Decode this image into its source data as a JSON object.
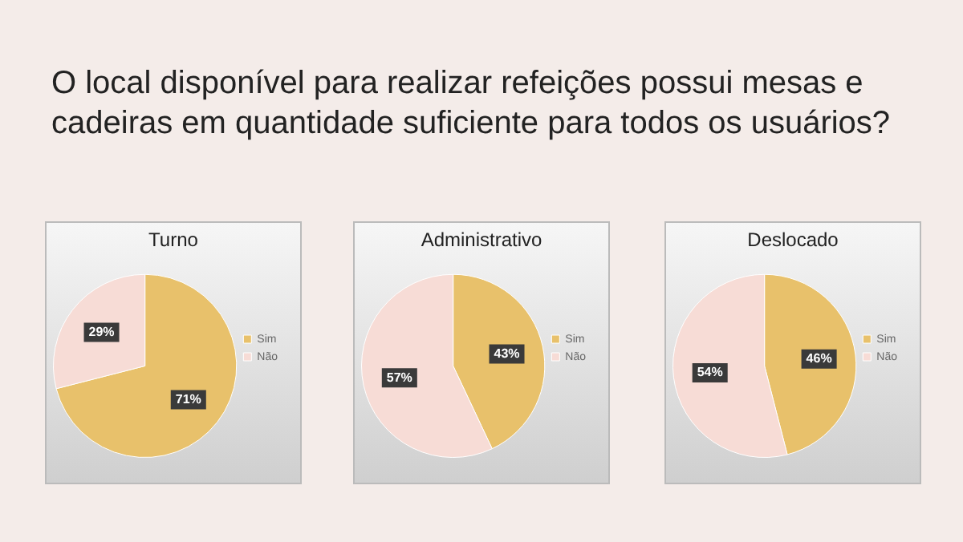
{
  "chart_data": [
    {
      "type": "other",
      "title": "O local disponível para realizar refeições possui mesas e cadeiras em quantidade suficiente para todos os usuários?"
    },
    {
      "type": "pie",
      "title": "Turno",
      "categories": [
        "Sim",
        "Não"
      ],
      "values": [
        71,
        29
      ],
      "colors": [
        "#e8c16b",
        "#f7dcd6"
      ],
      "value_labels": [
        "71%",
        "29%"
      ],
      "legend": "right"
    },
    {
      "type": "pie",
      "title": "Administrativo",
      "categories": [
        "Sim",
        "Não"
      ],
      "values": [
        43,
        57
      ],
      "colors": [
        "#e8c16b",
        "#f7dcd6"
      ],
      "value_labels": [
        "43%",
        "57%"
      ],
      "legend": "right"
    },
    {
      "type": "pie",
      "title": "Deslocado",
      "categories": [
        "Sim",
        "Não"
      ],
      "values": [
        46,
        54
      ],
      "colors": [
        "#e8c16b",
        "#f7dcd6"
      ],
      "value_labels": [
        "46%",
        "54%"
      ],
      "legend": "right"
    }
  ]
}
